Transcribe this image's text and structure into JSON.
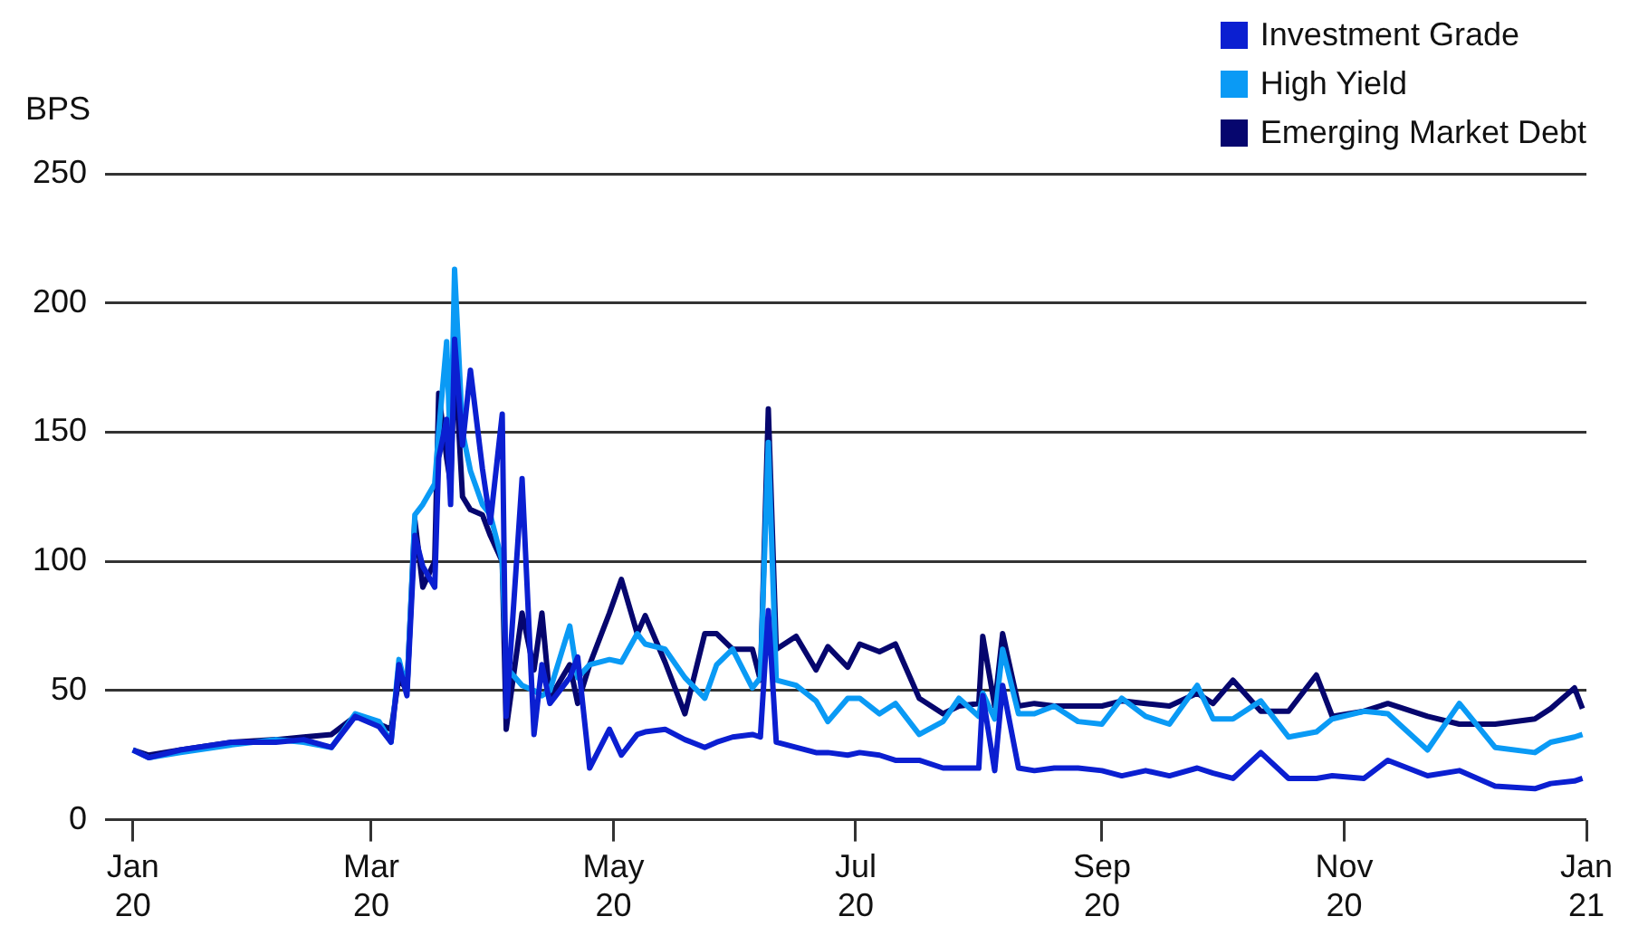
{
  "chart_data": {
    "type": "line",
    "ylabel": "BPS",
    "legend": "top right",
    "grid": "y",
    "x": [
      "2020-01-01",
      "2020-01-05",
      "2020-01-13",
      "2020-01-26",
      "2020-02-06",
      "2020-02-13",
      "2020-02-20",
      "2020-02-26",
      "2020-03-03",
      "2020-03-06",
      "2020-03-08",
      "2020-03-10",
      "2020-03-12",
      "2020-03-14",
      "2020-03-17",
      "2020-03-18",
      "2020-03-20",
      "2020-03-21",
      "2020-03-22",
      "2020-03-24",
      "2020-03-26",
      "2020-03-29",
      "2020-03-31",
      "2020-04-03",
      "2020-04-04",
      "2020-04-08",
      "2020-04-11",
      "2020-04-13",
      "2020-04-15",
      "2020-04-20",
      "2020-04-22",
      "2020-04-25",
      "2020-04-30",
      "2020-05-03",
      "2020-05-07",
      "2020-05-09",
      "2020-05-14",
      "2020-05-19",
      "2020-05-24",
      "2020-05-27",
      "2020-05-31",
      "2020-06-05",
      "2020-06-07",
      "2020-06-09",
      "2020-06-11",
      "2020-06-16",
      "2020-06-21",
      "2020-06-24",
      "2020-06-29",
      "2020-07-02",
      "2020-07-07",
      "2020-07-11",
      "2020-07-17",
      "2020-07-23",
      "2020-07-27",
      "2020-08-01",
      "2020-08-02",
      "2020-08-05",
      "2020-08-07",
      "2020-08-11",
      "2020-08-15",
      "2020-08-20",
      "2020-08-26",
      "2020-09-01",
      "2020-09-06",
      "2020-09-12",
      "2020-09-18",
      "2020-09-25",
      "2020-09-29",
      "2020-10-04",
      "2020-10-11",
      "2020-10-18",
      "2020-10-25",
      "2020-10-29",
      "2020-11-06",
      "2020-11-12",
      "2020-11-22",
      "2020-11-30",
      "2020-12-09",
      "2020-12-19",
      "2020-12-23",
      "2020-12-29",
      "2020-12-31"
    ],
    "series": [
      {
        "name": "Investment Grade",
        "color": "#0b1fd1",
        "values": [
          27,
          24,
          27,
          30,
          30,
          31,
          28,
          40,
          36,
          30,
          60,
          48,
          110,
          98,
          90,
          140,
          155,
          122,
          186,
          145,
          174,
          136,
          115,
          157,
          40,
          132,
          33,
          60,
          45,
          55,
          63,
          20,
          35,
          25,
          33,
          34,
          35,
          31,
          28,
          30,
          32,
          33,
          32,
          81,
          30,
          28,
          26,
          26,
          25,
          26,
          25,
          23,
          23,
          20,
          20,
          20,
          48,
          19,
          52,
          20,
          19,
          20,
          20,
          19,
          17,
          19,
          17,
          20,
          18,
          16,
          26,
          16,
          16,
          17,
          16,
          23,
          17,
          19,
          13,
          12,
          14,
          15,
          16
        ]
      },
      {
        "name": "High Yield",
        "color": "#0a9af5",
        "values": [
          27,
          24,
          26,
          29,
          31,
          30,
          28,
          41,
          38,
          30,
          62,
          50,
          118,
          122,
          130,
          150,
          185,
          140,
          213,
          150,
          135,
          122,
          118,
          100,
          59,
          52,
          50,
          48,
          50,
          75,
          55,
          60,
          62,
          61,
          72,
          68,
          66,
          55,
          47,
          60,
          66,
          51,
          55,
          146,
          54,
          52,
          46,
          38,
          47,
          47,
          41,
          45,
          33,
          38,
          47,
          40,
          49,
          39,
          66,
          41,
          41,
          44,
          38,
          37,
          47,
          40,
          37,
          52,
          39,
          39,
          46,
          32,
          34,
          39,
          42,
          41,
          27,
          45,
          28,
          26,
          30,
          32,
          33
        ]
      },
      {
        "name": "Emerging Market Debt",
        "color": "#06066e",
        "values": [
          27,
          25,
          27,
          30,
          31,
          32,
          33,
          40,
          37,
          35,
          55,
          50,
          116,
          90,
          100,
          165,
          140,
          130,
          180,
          125,
          120,
          118,
          110,
          100,
          35,
          80,
          58,
          80,
          47,
          60,
          45,
          60,
          80,
          93,
          72,
          79,
          61,
          41,
          72,
          72,
          66,
          66,
          54,
          159,
          66,
          71,
          58,
          67,
          59,
          68,
          65,
          68,
          47,
          41,
          44,
          45,
          71,
          44,
          72,
          44,
          45,
          44,
          44,
          44,
          46,
          45,
          44,
          49,
          45,
          54,
          42,
          42,
          56,
          40,
          42,
          45,
          40,
          37,
          37,
          39,
          43,
          51,
          43
        ]
      }
    ],
    "xlim": [
      "2019-12-25",
      "2021-01-01"
    ],
    "xticks": [
      {
        "value": "2020-01-01",
        "label": "Jan 20"
      },
      {
        "value": "2020-03-01",
        "label": "Mar 20"
      },
      {
        "value": "2020-05-01",
        "label": "May 20"
      },
      {
        "value": "2020-07-01",
        "label": "Jul 20"
      },
      {
        "value": "2020-09-01",
        "label": "Sep 20"
      },
      {
        "value": "2020-11-01",
        "label": "Nov 20"
      },
      {
        "value": "2021-01-01",
        "label": "Jan 21"
      }
    ],
    "ylim": [
      0,
      250
    ],
    "yticks": [
      0,
      50,
      100,
      150,
      200,
      250
    ]
  }
}
